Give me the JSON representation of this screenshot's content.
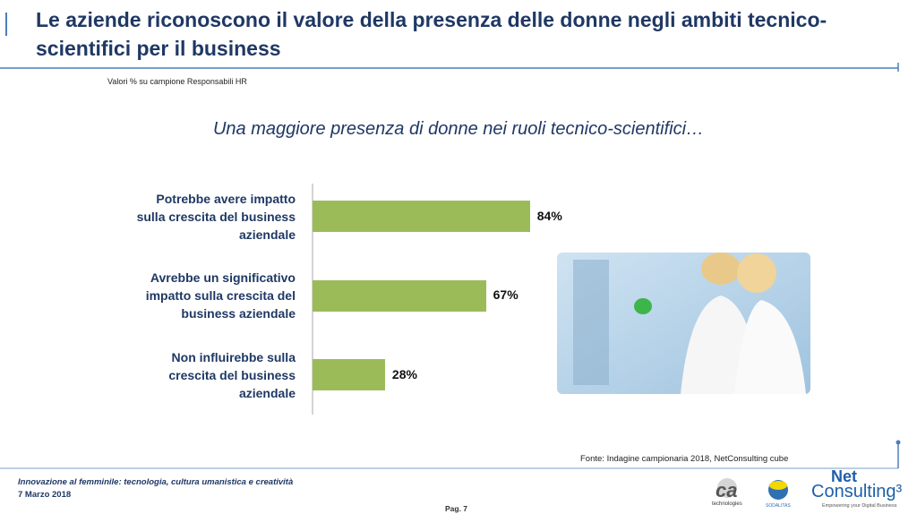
{
  "chart_data": {
    "type": "bar",
    "orientation": "horizontal",
    "title": "Una maggiore presenza di donne nei ruoli tecnico-scientifici…",
    "categories": [
      "Potrebbe avere impatto\nsulla crescita del business\naziendale",
      "Avrebbe un significativo\nimpatto sulla crescita del\nbusiness aziendale",
      "Non influirebbe sulla\ncrescita del business\naziendale"
    ],
    "values": [
      84,
      67,
      28
    ],
    "value_labels": [
      "84%",
      "67%",
      "28%"
    ],
    "color": "#9bbb59"
  },
  "slide": {
    "title": "Le aziende riconoscono il valore della presenza delle donne negli ambiti tecnico-scientifici per il business",
    "subtitle": "Valori % su campione Responsabili HR",
    "source": "Fonte: Indagine campionaria 2018, NetConsulting cube",
    "footer": "Innovazione al femminile: tecnologia, cultura umanistica e creatività",
    "date": "7 Marzo 2018",
    "page": "Pag. 7",
    "logos": [
      "ca",
      "technologies",
      "SODALITAS",
      "Net",
      "Consulting³",
      "Empowering your Digital Business"
    ]
  }
}
